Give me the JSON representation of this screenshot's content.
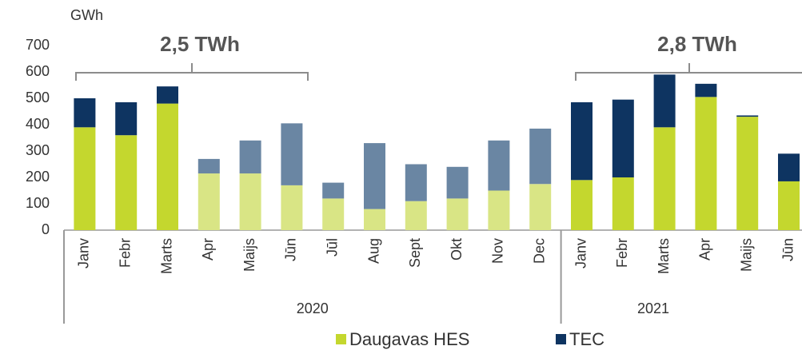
{
  "chart_data": {
    "type": "stacked_bar",
    "y_axis_label": "GWh",
    "categories": [
      "Janv",
      "Febr",
      "Marts",
      "Apr",
      "Maijs",
      "Jūn",
      "Jūl",
      "Aug",
      "Sept",
      "Okt",
      "Nov",
      "Dec",
      "Janv",
      "Febr",
      "Marts",
      "Apr",
      "Maijs",
      "Jūn"
    ],
    "x_groups": [
      {
        "label": "2020",
        "size": 12
      },
      {
        "label": "2021",
        "size": 6
      }
    ],
    "series": [
      {
        "name": "Daugavas HES",
        "color": "#c4d72e",
        "colors": [
          "#c4d72e",
          "#c4d72e",
          "#c4d72e",
          "#d9e585",
          "#d9e585",
          "#d9e585",
          "#d9e585",
          "#d9e585",
          "#d9e585",
          "#d9e585",
          "#d9e585",
          "#d9e585",
          "#c4d72e",
          "#c4d72e",
          "#c4d72e",
          "#c4d72e",
          "#c4d72e",
          "#c4d72e"
        ],
        "values": [
          390,
          360,
          480,
          215,
          215,
          170,
          120,
          80,
          110,
          120,
          150,
          175,
          190,
          200,
          390,
          505,
          430,
          185
        ]
      },
      {
        "name": "TEC",
        "color": "#0e3461",
        "colors": [
          "#0e3461",
          "#0e3461",
          "#0e3461",
          "#6a86a3",
          "#6a86a3",
          "#6a86a3",
          "#6a86a3",
          "#6a86a3",
          "#6a86a3",
          "#6a86a3",
          "#6a86a3",
          "#6a86a3",
          "#0e3461",
          "#0e3461",
          "#0e3461",
          "#0e3461",
          "#0e3461",
          "#0e3461"
        ],
        "values": [
          110,
          125,
          65,
          55,
          125,
          235,
          60,
          250,
          140,
          120,
          190,
          210,
          295,
          295,
          200,
          50,
          5,
          105
        ]
      }
    ],
    "annotations": [
      "2,5 TWh",
      "2,8 TWh"
    ],
    "ylim": [
      0,
      700
    ],
    "yticks": [
      0,
      100,
      200,
      300,
      400,
      500,
      600,
      700
    ],
    "grid": false,
    "legend": "bottom"
  }
}
